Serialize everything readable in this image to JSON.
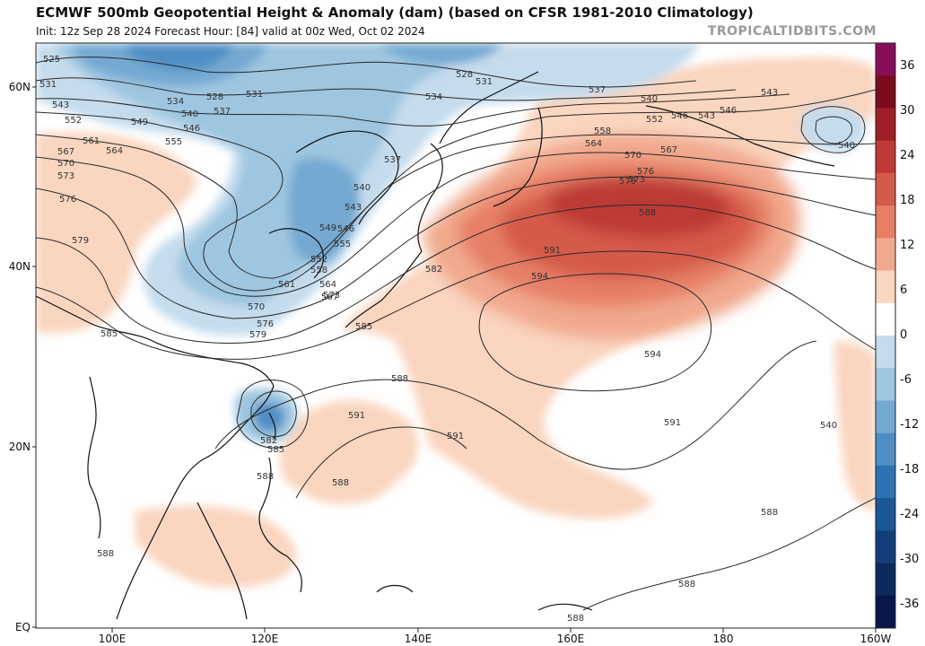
{
  "header": {
    "title": "ECMWF 500mb Geopotential Height & Anomaly (dam) (based on CFSR 1981-2010 Climatology)",
    "subtitle": "Init: 12z Sep 28 2024   Forecast Hour: [84]   valid at 00z Wed, Oct 02 2024",
    "brand": "TROPICALTIDBITS.COM"
  },
  "axes": {
    "lat_labels": [
      "60N",
      "40N",
      "20N",
      "EQ"
    ],
    "lon_labels": [
      "100E",
      "120E",
      "140E",
      "160E",
      "180",
      "160W"
    ]
  },
  "colorbar": {
    "labels": [
      "36",
      "30",
      "24",
      "18",
      "12",
      "6",
      "0",
      "-6",
      "-12",
      "-18",
      "-24",
      "-30",
      "-36"
    ],
    "colors": [
      "#880e5c",
      "#7a0c1e",
      "#9f1f26",
      "#bd3a36",
      "#d45a4a",
      "#e67f66",
      "#f1a98d",
      "#fad5c0",
      "#ffffff",
      "#c5dced",
      "#9ec6e0",
      "#74a9d2",
      "#4f8ec4",
      "#2f72b2",
      "#1b5797",
      "#133f79",
      "#0c2b5c",
      "#09164a"
    ]
  },
  "contours": {
    "labels": [
      "525",
      "531",
      "543",
      "552",
      "561",
      "567",
      "570",
      "573",
      "576",
      "579",
      "585",
      "534",
      "528",
      "531",
      "537",
      "540",
      "549",
      "555",
      "546",
      "564",
      "534",
      "528",
      "531",
      "537",
      "540",
      "543",
      "546",
      "549",
      "552",
      "555",
      "558",
      "561",
      "564",
      "567",
      "570",
      "573",
      "576",
      "579",
      "582",
      "585",
      "588",
      "591",
      "594",
      "594",
      "588",
      "591",
      "591",
      "591",
      "588",
      "582",
      "585",
      "588",
      "588",
      "588",
      "588",
      "588",
      "540",
      "537",
      "540",
      "543",
      "546",
      "540",
      "543",
      "546",
      "552",
      "558",
      "564",
      "567",
      "570",
      "573",
      "576",
      "579"
    ]
  },
  "colors": {
    "land_line": "#111111",
    "contour_line": "#2a2a2a",
    "positive_anomaly": "#d45a4a",
    "negative_anomaly": "#4f8ec4"
  }
}
